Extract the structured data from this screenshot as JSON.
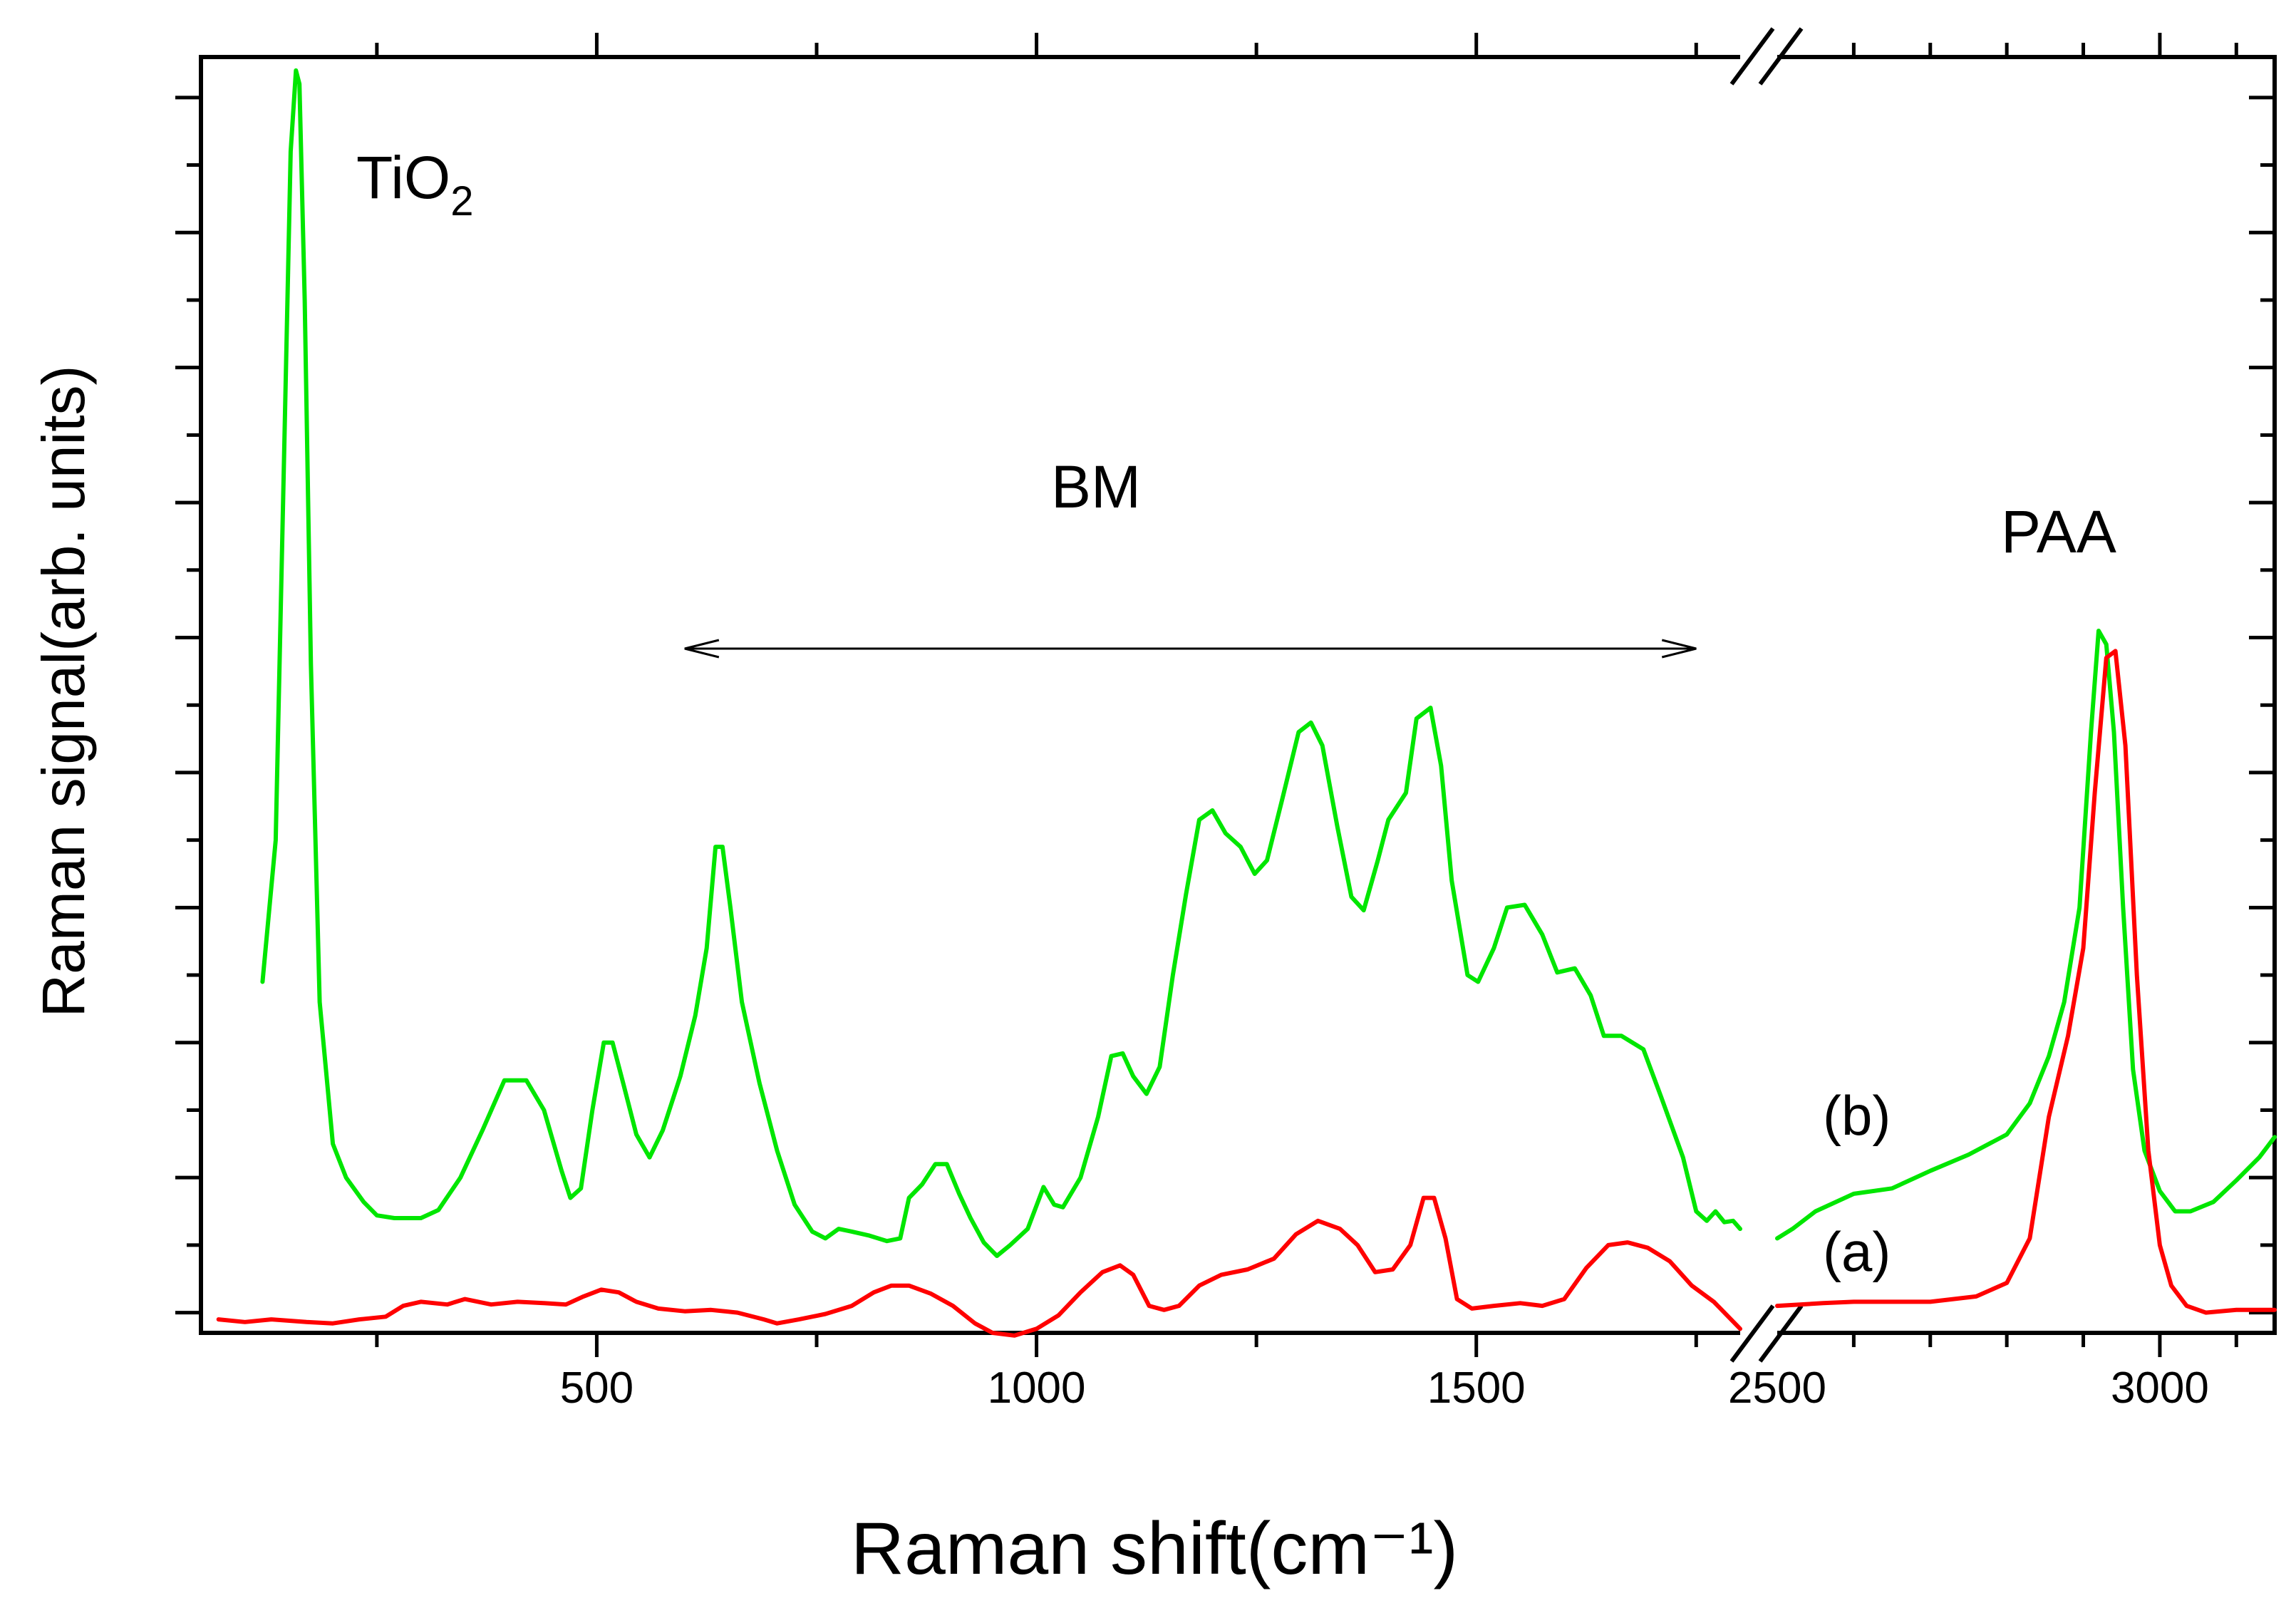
{
  "chart_data": {
    "type": "line",
    "title": "",
    "xlabel": "Raman shift(cm⁻¹)",
    "ylabel": "Raman signal(arb. units)",
    "x_axis_break": [
      1800,
      2500
    ],
    "xlim_left": [
      50,
      1800
    ],
    "xlim_right": [
      2500,
      3150
    ],
    "ylim": [
      -0.15,
      9.3
    ],
    "xticks": [
      {
        "value": 500,
        "label": "500"
      },
      {
        "value": 1000,
        "label": "1000"
      },
      {
        "value": 1500,
        "label": "1500"
      },
      {
        "value": 2500,
        "label": "2500"
      },
      {
        "value": 3000,
        "label": "3000"
      }
    ],
    "annotations": {
      "tio2": {
        "text": "TiO",
        "sub": "2"
      },
      "bm": "BM",
      "paa": "PAA",
      "bm_range": [
        600,
        1750
      ]
    },
    "series": [
      {
        "name": "(b)",
        "color": "#00e600",
        "points": [
          [
            120,
            2.45
          ],
          [
            135,
            3.5
          ],
          [
            145,
            6.5
          ],
          [
            152,
            8.6
          ],
          [
            158,
            9.2
          ],
          [
            162,
            9.1
          ],
          [
            168,
            7.5
          ],
          [
            175,
            4.8
          ],
          [
            185,
            2.3
          ],
          [
            200,
            1.25
          ],
          [
            215,
            1.0
          ],
          [
            235,
            0.82
          ],
          [
            250,
            0.72
          ],
          [
            270,
            0.7
          ],
          [
            300,
            0.7
          ],
          [
            320,
            0.76
          ],
          [
            345,
            1.0
          ],
          [
            370,
            1.35
          ],
          [
            395,
            1.72
          ],
          [
            420,
            1.72
          ],
          [
            440,
            1.5
          ],
          [
            460,
            1.05
          ],
          [
            470,
            0.85
          ],
          [
            482,
            0.92
          ],
          [
            495,
            1.5
          ],
          [
            508,
            2.0
          ],
          [
            518,
            2.0
          ],
          [
            530,
            1.7
          ],
          [
            545,
            1.32
          ],
          [
            560,
            1.15
          ],
          [
            575,
            1.35
          ],
          [
            595,
            1.75
          ],
          [
            612,
            2.2
          ],
          [
            625,
            2.7
          ],
          [
            635,
            3.45
          ],
          [
            643,
            3.45
          ],
          [
            652,
            3.0
          ],
          [
            665,
            2.3
          ],
          [
            685,
            1.7
          ],
          [
            705,
            1.2
          ],
          [
            725,
            0.8
          ],
          [
            745,
            0.6
          ],
          [
            760,
            0.55
          ],
          [
            775,
            0.62
          ],
          [
            790,
            0.6
          ],
          [
            810,
            0.57
          ],
          [
            830,
            0.53
          ],
          [
            845,
            0.55
          ],
          [
            855,
            0.85
          ],
          [
            870,
            0.95
          ],
          [
            885,
            1.1
          ],
          [
            898,
            1.1
          ],
          [
            912,
            0.88
          ],
          [
            925,
            0.7
          ],
          [
            940,
            0.52
          ],
          [
            955,
            0.42
          ],
          [
            970,
            0.5
          ],
          [
            990,
            0.62
          ],
          [
            1008,
            0.93
          ],
          [
            1020,
            0.8
          ],
          [
            1030,
            0.78
          ],
          [
            1050,
            1.0
          ],
          [
            1070,
            1.45
          ],
          [
            1085,
            1.9
          ],
          [
            1098,
            1.92
          ],
          [
            1110,
            1.75
          ],
          [
            1125,
            1.62
          ],
          [
            1140,
            1.82
          ],
          [
            1155,
            2.5
          ],
          [
            1170,
            3.1
          ],
          [
            1185,
            3.65
          ],
          [
            1200,
            3.72
          ],
          [
            1215,
            3.55
          ],
          [
            1232,
            3.45
          ],
          [
            1248,
            3.25
          ],
          [
            1262,
            3.35
          ],
          [
            1280,
            3.82
          ],
          [
            1298,
            4.3
          ],
          [
            1312,
            4.37
          ],
          [
            1325,
            4.2
          ],
          [
            1342,
            3.6
          ],
          [
            1358,
            3.08
          ],
          [
            1372,
            2.98
          ],
          [
            1388,
            3.35
          ],
          [
            1400,
            3.65
          ],
          [
            1420,
            3.85
          ],
          [
            1432,
            4.4
          ],
          [
            1448,
            4.48
          ],
          [
            1460,
            4.05
          ],
          [
            1472,
            3.2
          ],
          [
            1490,
            2.5
          ],
          [
            1502,
            2.45
          ],
          [
            1520,
            2.7
          ],
          [
            1535,
            3.0
          ],
          [
            1555,
            3.02
          ],
          [
            1575,
            2.8
          ],
          [
            1592,
            2.52
          ],
          [
            1612,
            2.55
          ],
          [
            1630,
            2.35
          ],
          [
            1645,
            2.05
          ],
          [
            1665,
            2.05
          ],
          [
            1690,
            1.95
          ],
          [
            1710,
            1.6
          ],
          [
            1735,
            1.15
          ],
          [
            1750,
            0.75
          ],
          [
            1762,
            0.68
          ],
          [
            1772,
            0.75
          ],
          [
            1782,
            0.67
          ],
          [
            1792,
            0.68
          ],
          [
            1800,
            0.62
          ],
          [
            2500,
            0.55
          ],
          [
            2520,
            0.62
          ],
          [
            2550,
            0.75
          ],
          [
            2600,
            0.88
          ],
          [
            2650,
            0.92
          ],
          [
            2700,
            1.05
          ],
          [
            2750,
            1.17
          ],
          [
            2800,
            1.32
          ],
          [
            2830,
            1.55
          ],
          [
            2855,
            1.9
          ],
          [
            2875,
            2.3
          ],
          [
            2895,
            3.0
          ],
          [
            2910,
            4.3
          ],
          [
            2920,
            5.05
          ],
          [
            2930,
            4.95
          ],
          [
            2940,
            4.3
          ],
          [
            2952,
            3.0
          ],
          [
            2965,
            1.8
          ],
          [
            2980,
            1.2
          ],
          [
            3000,
            0.9
          ],
          [
            3020,
            0.75
          ],
          [
            3040,
            0.75
          ],
          [
            3070,
            0.82
          ],
          [
            3100,
            0.98
          ],
          [
            3130,
            1.15
          ],
          [
            3150,
            1.3
          ]
        ]
      },
      {
        "name": "(a)",
        "color": "#ff0000",
        "points": [
          [
            70,
            -0.05
          ],
          [
            100,
            -0.07
          ],
          [
            130,
            -0.05
          ],
          [
            170,
            -0.07
          ],
          [
            200,
            -0.08
          ],
          [
            230,
            -0.05
          ],
          [
            260,
            -0.03
          ],
          [
            280,
            0.05
          ],
          [
            300,
            0.08
          ],
          [
            330,
            0.06
          ],
          [
            350,
            0.1
          ],
          [
            380,
            0.06
          ],
          [
            410,
            0.08
          ],
          [
            440,
            0.07
          ],
          [
            465,
            0.06
          ],
          [
            485,
            0.12
          ],
          [
            505,
            0.17
          ],
          [
            525,
            0.15
          ],
          [
            545,
            0.08
          ],
          [
            570,
            0.03
          ],
          [
            600,
            0.01
          ],
          [
            630,
            0.02
          ],
          [
            660,
            0.0
          ],
          [
            690,
            -0.05
          ],
          [
            705,
            -0.08
          ],
          [
            730,
            -0.05
          ],
          [
            760,
            -0.01
          ],
          [
            790,
            0.05
          ],
          [
            815,
            0.15
          ],
          [
            835,
            0.2
          ],
          [
            855,
            0.2
          ],
          [
            880,
            0.14
          ],
          [
            905,
            0.05
          ],
          [
            930,
            -0.08
          ],
          [
            950,
            -0.15
          ],
          [
            975,
            -0.17
          ],
          [
            1000,
            -0.12
          ],
          [
            1025,
            -0.02
          ],
          [
            1050,
            0.15
          ],
          [
            1075,
            0.3
          ],
          [
            1095,
            0.35
          ],
          [
            1110,
            0.28
          ],
          [
            1128,
            0.05
          ],
          [
            1145,
            0.02
          ],
          [
            1162,
            0.05
          ],
          [
            1185,
            0.2
          ],
          [
            1210,
            0.28
          ],
          [
            1240,
            0.32
          ],
          [
            1270,
            0.4
          ],
          [
            1295,
            0.58
          ],
          [
            1320,
            0.68
          ],
          [
            1345,
            0.62
          ],
          [
            1365,
            0.5
          ],
          [
            1385,
            0.3
          ],
          [
            1405,
            0.32
          ],
          [
            1425,
            0.5
          ],
          [
            1440,
            0.85
          ],
          [
            1452,
            0.85
          ],
          [
            1465,
            0.55
          ],
          [
            1478,
            0.1
          ],
          [
            1495,
            0.03
          ],
          [
            1520,
            0.05
          ],
          [
            1550,
            0.07
          ],
          [
            1575,
            0.05
          ],
          [
            1600,
            0.1
          ],
          [
            1625,
            0.33
          ],
          [
            1650,
            0.5
          ],
          [
            1672,
            0.52
          ],
          [
            1695,
            0.48
          ],
          [
            1720,
            0.38
          ],
          [
            1745,
            0.2
          ],
          [
            1770,
            0.08
          ],
          [
            1800,
            -0.12
          ],
          [
            2500,
            0.05
          ],
          [
            2560,
            0.07
          ],
          [
            2600,
            0.08
          ],
          [
            2650,
            0.08
          ],
          [
            2700,
            0.08
          ],
          [
            2760,
            0.12
          ],
          [
            2800,
            0.22
          ],
          [
            2830,
            0.55
          ],
          [
            2855,
            1.45
          ],
          [
            2880,
            2.05
          ],
          [
            2900,
            2.7
          ],
          [
            2915,
            3.85
          ],
          [
            2930,
            4.85
          ],
          [
            2942,
            4.9
          ],
          [
            2955,
            4.2
          ],
          [
            2970,
            2.5
          ],
          [
            2985,
            1.2
          ],
          [
            3000,
            0.5
          ],
          [
            3015,
            0.2
          ],
          [
            3035,
            0.05
          ],
          [
            3060,
            0.0
          ],
          [
            3100,
            0.02
          ],
          [
            3150,
            0.02
          ]
        ]
      }
    ]
  }
}
